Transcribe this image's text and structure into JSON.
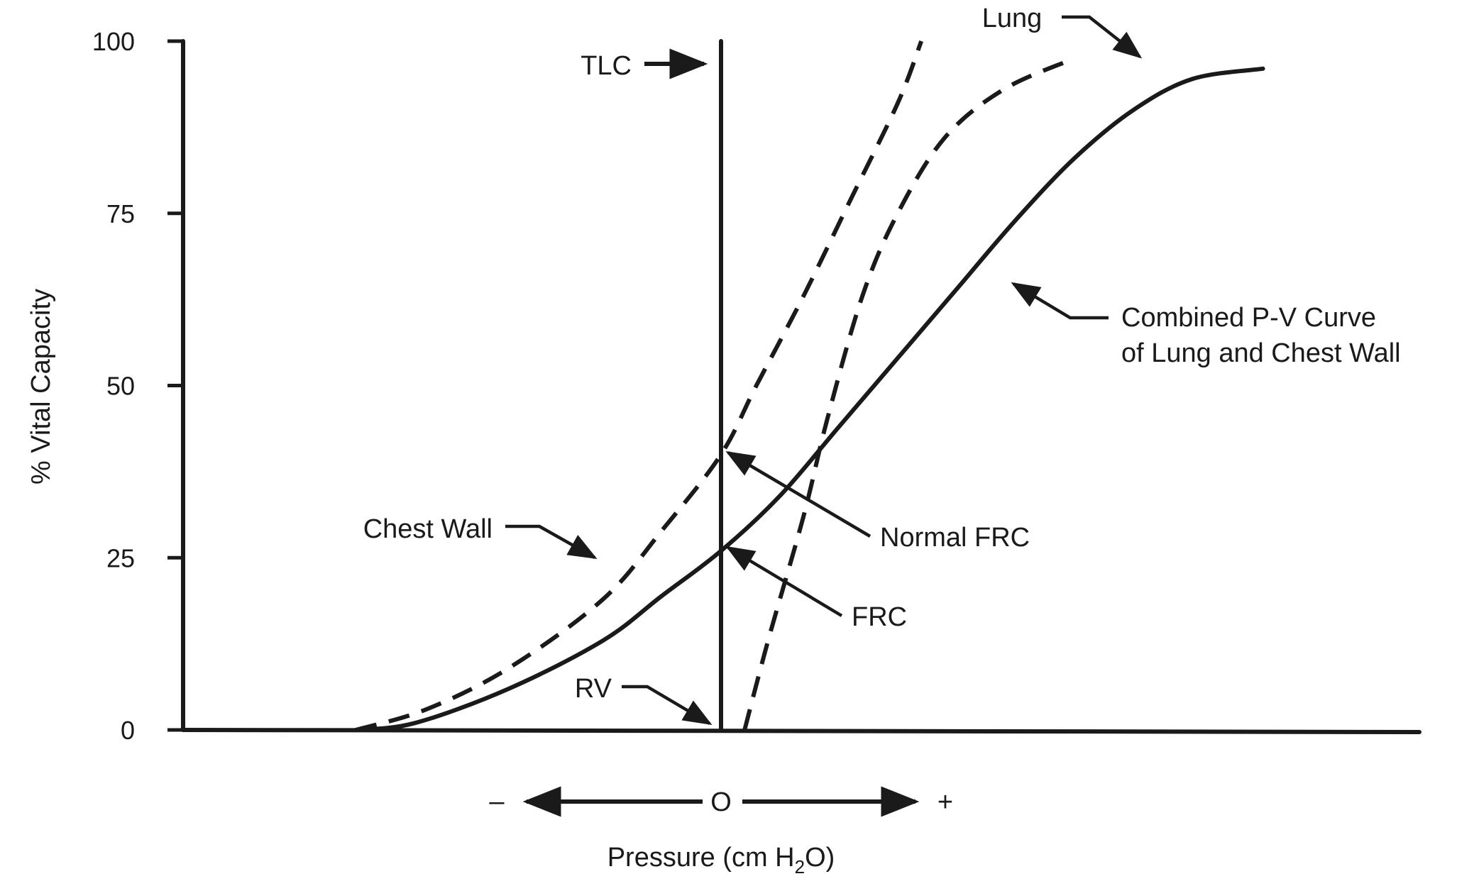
{
  "chart_data": {
    "type": "line",
    "title": "",
    "ylabel": "% Vital Capacity",
    "xlabel": "Pressure (cm H",
    "xlabel_sub": "2",
    "xlabel_end": "O)",
    "ylim": [
      0,
      100
    ],
    "yticks": [
      "0",
      "25",
      "50",
      "75",
      "100"
    ],
    "ytick_values": [
      0,
      25,
      50,
      75,
      100
    ],
    "x_axis_zero_label": "O",
    "x_axis_minus_label": "–",
    "x_axis_plus_label": "+",
    "series": [
      {
        "key": "chest_wall",
        "style": "dashed",
        "points": [
          [
            -31,
            0
          ],
          [
            -25,
            3
          ],
          [
            -18,
            9
          ],
          [
            -10,
            19
          ],
          [
            -5,
            29
          ],
          [
            0,
            40
          ],
          [
            3,
            50
          ],
          [
            7,
            63
          ],
          [
            11,
            77
          ],
          [
            15,
            91
          ],
          [
            17,
            100
          ]
        ]
      },
      {
        "key": "lung",
        "style": "dashed",
        "points": [
          [
            2,
            0
          ],
          [
            4,
            13
          ],
          [
            7,
            31
          ],
          [
            9,
            45
          ],
          [
            12,
            63
          ],
          [
            15,
            75
          ],
          [
            19,
            86
          ],
          [
            24,
            93
          ],
          [
            30,
            97.5
          ]
        ]
      },
      {
        "key": "combined",
        "style": "solid",
        "points": [
          [
            -31,
            0
          ],
          [
            -26,
            1
          ],
          [
            -18,
            6
          ],
          [
            -10,
            13
          ],
          [
            -5,
            19.5
          ],
          [
            0,
            26
          ],
          [
            5,
            34
          ],
          [
            10,
            44
          ],
          [
            15,
            54
          ],
          [
            20,
            64
          ],
          [
            25,
            74
          ],
          [
            30,
            83
          ],
          [
            35,
            90
          ],
          [
            40,
            94.5
          ],
          [
            46,
            96
          ]
        ]
      }
    ],
    "reference_line": {
      "x": 0,
      "y_from": 0,
      "y_to": 100
    },
    "annotations": {
      "tlc": "TLC",
      "rv": "RV",
      "lung": "Lung",
      "chest_wall": "Chest Wall",
      "combined_line1": "Combined P-V Curve",
      "combined_line2": "of Lung and Chest Wall",
      "normal_frc": "Normal FRC",
      "frc": "FRC"
    }
  }
}
